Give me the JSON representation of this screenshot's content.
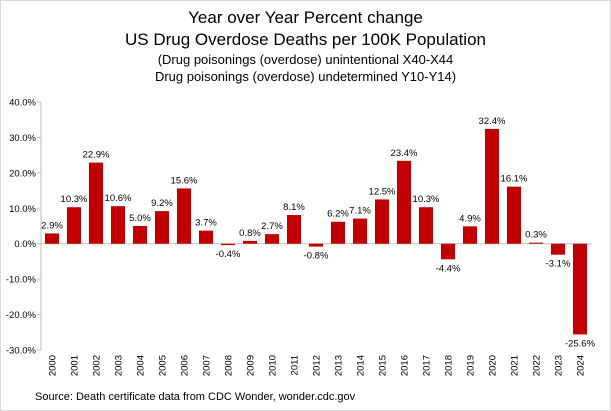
{
  "chart_data": {
    "type": "bar",
    "title": "Year over Year Percent change",
    "title_line2": "US Drug Overdose Deaths per 100K Population",
    "subtitle_line1": "(Drug poisonings (overdose) unintentional X40-X44",
    "subtitle_line2": "Drug poisonings (overdose) undetermined Y10-Y14)",
    "xlabel": "",
    "ylabel": "",
    "ylim": [
      -30,
      40
    ],
    "yticks": [
      -30,
      -20,
      -10,
      0,
      10,
      20,
      30,
      40
    ],
    "ytick_labels": [
      "-30.0%",
      "-20.0%",
      "-10.0%",
      "0.0%",
      "10.0%",
      "20.0%",
      "30.0%",
      "40.0%"
    ],
    "grid": false,
    "legend": "none",
    "categories": [
      "2000",
      "2001",
      "2002",
      "2003",
      "2004",
      "2005",
      "2006",
      "2007",
      "2008",
      "2009",
      "2010",
      "2011",
      "2012",
      "2013",
      "2014",
      "2015",
      "2016",
      "2017",
      "2018",
      "2019",
      "2020",
      "2021",
      "2022",
      "2023",
      "2024"
    ],
    "values": [
      2.9,
      10.3,
      22.9,
      10.6,
      5.0,
      9.2,
      15.6,
      3.7,
      -0.4,
      0.8,
      2.7,
      8.1,
      -0.8,
      6.2,
      7.1,
      12.5,
      23.4,
      10.3,
      -4.4,
      4.9,
      32.4,
      16.1,
      0.3,
      -3.1,
      -25.6
    ],
    "value_labels": [
      "2.9%",
      "10.3%",
      "22.9%",
      "10.6%",
      "5.0%",
      "9.2%",
      "15.6%",
      "3.7%",
      "-0.4%",
      "0.8%",
      "2.7%",
      "8.1%",
      "-0.8%",
      "6.2%",
      "7.1%",
      "12.5%",
      "23.4%",
      "10.3%",
      "-4.4%",
      "4.9%",
      "32.4%",
      "16.1%",
      "0.3%",
      "-3.1%",
      "-25.6%"
    ],
    "bar_color": "#c00000",
    "source": "Source: Death certificate data from CDC Wonder, wonder.cdc.gov"
  }
}
